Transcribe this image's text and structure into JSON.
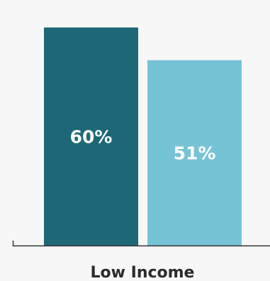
{
  "chart_data": {
    "type": "bar",
    "categories": [
      "Low Income"
    ],
    "series": [
      {
        "values": [
          60
        ],
        "color": "#1e6776"
      },
      {
        "values": [
          51
        ],
        "color": "#77c3d6"
      }
    ],
    "data_labels": [
      "60%",
      "51%"
    ],
    "ylim": [
      0,
      66
    ],
    "grid": false,
    "legend": "none",
    "axis_color": "#333333"
  }
}
